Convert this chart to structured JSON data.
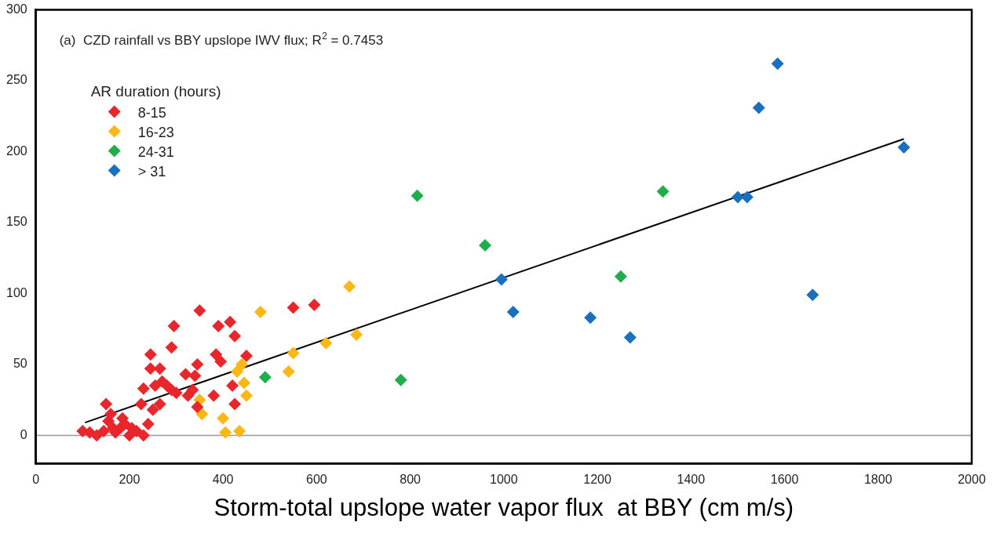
{
  "chart_data": {
    "type": "scatter",
    "title": "(a)  CZD rainfall vs BBY upslope IWV flux; R$^{2}$ = 0.7453",
    "xlabel": "Storm-total upslope water vapor flux  at BBY (cm m/s)",
    "legend_title": "AR duration (hours)",
    "xlim": [
      0,
      2000
    ],
    "xticks": [
      0,
      200,
      400,
      600,
      800,
      1000,
      1200,
      1400,
      1600,
      1800,
      2000
    ],
    "ylim": [
      -20,
      300
    ],
    "yticks": [
      0,
      50,
      100,
      150,
      200,
      250,
      300
    ],
    "grid": false,
    "legend": "top left",
    "marker": "diamond",
    "ref_lines": [
      {
        "axis": "y",
        "value": 0,
        "label": null,
        "color": "#999999"
      }
    ],
    "series": [
      {
        "name": "8-15",
        "color": "#e8262b",
        "x": [
          100,
          115,
          130,
          145,
          150,
          155,
          160,
          165,
          170,
          180,
          185,
          190,
          195,
          200,
          205,
          215,
          225,
          230,
          230,
          240,
          245,
          245,
          250,
          255,
          265,
          265,
          270,
          280,
          290,
          290,
          295,
          300,
          320,
          325,
          335,
          340,
          345,
          345,
          350,
          380,
          385,
          390,
          395,
          415,
          420,
          425,
          425,
          450,
          550,
          595
        ],
        "values": [
          3,
          2,
          0,
          3,
          22,
          10,
          15,
          5,
          2,
          5,
          12,
          8,
          null,
          0,
          5,
          3,
          22,
          33,
          0,
          8,
          57,
          47,
          18,
          35,
          47,
          22,
          38,
          35,
          62,
          32,
          77,
          30,
          43,
          28,
          32,
          42,
          20,
          50,
          88,
          28,
          57,
          77,
          52,
          80,
          35,
          70,
          22,
          56,
          90,
          92
        ]
      },
      {
        "name": "16-23",
        "color": "#fbb714",
        "x": [
          350,
          355,
          400,
          405,
          435,
          430,
          440,
          445,
          450,
          480,
          540,
          550,
          620,
          670,
          685
        ],
        "values": [
          25,
          15,
          12,
          2,
          3,
          45,
          50,
          37,
          28,
          87,
          45,
          58,
          65,
          105,
          71
        ]
      },
      {
        "name": "24-31",
        "color": "#1fae4b",
        "x": [
          490,
          780,
          815,
          960,
          1250,
          1340
        ],
        "values": [
          41,
          39,
          169,
          134,
          112,
          172
        ]
      },
      {
        "name": "> 31",
        "color": "#1a6fbe",
        "x": [
          995,
          1020,
          1185,
          1270,
          1500,
          1520,
          1545,
          1585,
          1660,
          1855
        ],
        "values": [
          110,
          87,
          83,
          69,
          168,
          168,
          231,
          262,
          99,
          203
        ]
      },
      {
        "type": "line",
        "color": "#000000",
        "marker": "none",
        "x": [
          105,
          1855
        ],
        "values": [
          9,
          209
        ]
      }
    ]
  }
}
